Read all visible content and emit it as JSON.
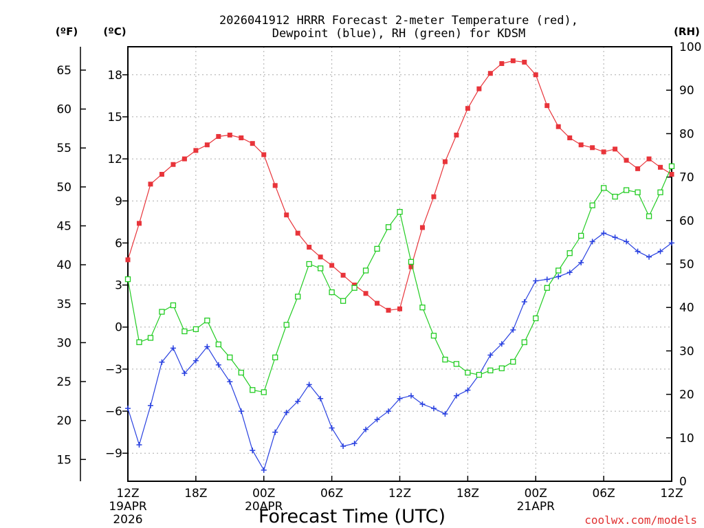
{
  "chart_data": {
    "type": "line",
    "title_line1": "2026041912 HRRR Forecast 2-meter Temperature (red),",
    "title_line2": "Dewpoint (blue), RH (green) for KDSM",
    "xlabel": "Forecast Time (UTC)",
    "unit_f": "(ºF)",
    "unit_c": "(ºC)",
    "unit_rh": "(RH)",
    "watermark": "coolwx.com/models",
    "x_range_hours": [
      0,
      48
    ],
    "c_range": [
      -11,
      20
    ],
    "f_range": [
      12.2,
      68
    ],
    "rh_range": [
      0,
      100
    ],
    "x_ticks": [
      {
        "h": 0,
        "label": "12Z",
        "sub1": "19APR",
        "sub2": "2026"
      },
      {
        "h": 6,
        "label": "18Z",
        "sub1": "",
        "sub2": ""
      },
      {
        "h": 12,
        "label": "00Z",
        "sub1": "20APR",
        "sub2": ""
      },
      {
        "h": 18,
        "label": "06Z",
        "sub1": "",
        "sub2": ""
      },
      {
        "h": 24,
        "label": "12Z",
        "sub1": "",
        "sub2": ""
      },
      {
        "h": 30,
        "label": "18Z",
        "sub1": "",
        "sub2": ""
      },
      {
        "h": 36,
        "label": "00Z",
        "sub1": "21APR",
        "sub2": ""
      },
      {
        "h": 42,
        "label": "06Z",
        "sub1": "",
        "sub2": ""
      },
      {
        "h": 48,
        "label": "12Z",
        "sub1": "",
        "sub2": ""
      }
    ],
    "c_ticks": [
      {
        "v": 18,
        "label": "18"
      },
      {
        "v": 15,
        "label": "15"
      },
      {
        "v": 12,
        "label": "12"
      },
      {
        "v": 9,
        "label": "9"
      },
      {
        "v": 6,
        "label": "6"
      },
      {
        "v": 3,
        "label": "3"
      },
      {
        "v": 0,
        "label": "0"
      },
      {
        "v": -3,
        "label": "−3"
      },
      {
        "v": -6,
        "label": "−6"
      },
      {
        "v": -9,
        "label": "−9"
      }
    ],
    "f_ticks": [
      {
        "v": 65,
        "label": "65"
      },
      {
        "v": 60,
        "label": "60"
      },
      {
        "v": 55,
        "label": "55"
      },
      {
        "v": 50,
        "label": "50"
      },
      {
        "v": 45,
        "label": "45"
      },
      {
        "v": 40,
        "label": "40"
      },
      {
        "v": 35,
        "label": "35"
      },
      {
        "v": 30,
        "label": "30"
      },
      {
        "v": 25,
        "label": "25"
      },
      {
        "v": 20,
        "label": "20"
      },
      {
        "v": 15,
        "label": "15"
      }
    ],
    "rh_ticks": [
      {
        "v": 100,
        "label": "100"
      },
      {
        "v": 90,
        "label": "90"
      },
      {
        "v": 80,
        "label": "80"
      },
      {
        "v": 70,
        "label": "70"
      },
      {
        "v": 60,
        "label": "60"
      },
      {
        "v": 50,
        "label": "50"
      },
      {
        "v": 40,
        "label": "40"
      },
      {
        "v": 30,
        "label": "30"
      },
      {
        "v": 20,
        "label": "20"
      },
      {
        "v": 10,
        "label": "10"
      },
      {
        "v": 0,
        "label": "0"
      }
    ],
    "series": [
      {
        "name": "Temperature (C)",
        "color": "#e8343a",
        "marker": "filled-square",
        "axis": "c",
        "values": [
          4.8,
          7.4,
          10.2,
          10.9,
          11.6,
          12.0,
          12.6,
          13.0,
          13.6,
          13.7,
          13.5,
          13.1,
          12.3,
          10.1,
          8.0,
          6.7,
          5.7,
          5.0,
          4.4,
          3.7,
          3.0,
          2.4,
          1.7,
          1.2,
          1.3,
          4.3,
          7.1,
          9.3,
          11.8,
          13.7,
          15.6,
          17.0,
          18.1,
          18.8,
          19.0,
          18.9,
          18.0,
          15.8,
          14.3,
          13.5,
          13.0,
          12.8,
          12.5,
          12.7,
          11.9,
          11.3,
          12.0,
          11.4,
          10.9
        ]
      },
      {
        "name": "Dewpoint (C)",
        "color": "#2840e0",
        "marker": "plus",
        "axis": "c",
        "values": [
          -5.8,
          -8.4,
          -5.6,
          -2.5,
          -1.5,
          -3.3,
          -2.4,
          -1.4,
          -2.7,
          -3.9,
          -6.0,
          -8.8,
          -10.2,
          -7.5,
          -6.1,
          -5.3,
          -4.1,
          -5.1,
          -7.2,
          -8.5,
          -8.3,
          -7.3,
          -6.6,
          -6.0,
          -5.1,
          -4.9,
          -5.5,
          -5.8,
          -6.2,
          -4.9,
          -4.5,
          -3.4,
          -2.0,
          -1.2,
          -0.2,
          1.8,
          3.3,
          3.4,
          3.6,
          3.9,
          4.6,
          6.1,
          6.7,
          6.4,
          6.1,
          5.4,
          5.0,
          5.4,
          6.0
        ]
      },
      {
        "name": "RH (%)",
        "color": "#22cc22",
        "marker": "open-square",
        "axis": "rh",
        "values": [
          46.5,
          32.0,
          33.0,
          39.0,
          40.5,
          34.5,
          35.0,
          37.0,
          31.5,
          28.5,
          25.0,
          21.0,
          20.5,
          28.5,
          36.0,
          42.5,
          50.0,
          49.0,
          43.5,
          41.5,
          44.5,
          48.5,
          53.5,
          58.5,
          62.0,
          50.5,
          40.0,
          33.5,
          28.0,
          27.0,
          25.0,
          24.5,
          25.5,
          26.0,
          27.5,
          32.0,
          37.5,
          44.5,
          48.5,
          52.5,
          56.5,
          63.5,
          67.5,
          65.5,
          67.0,
          66.5,
          61.0,
          66.5,
          72.5
        ]
      }
    ]
  }
}
